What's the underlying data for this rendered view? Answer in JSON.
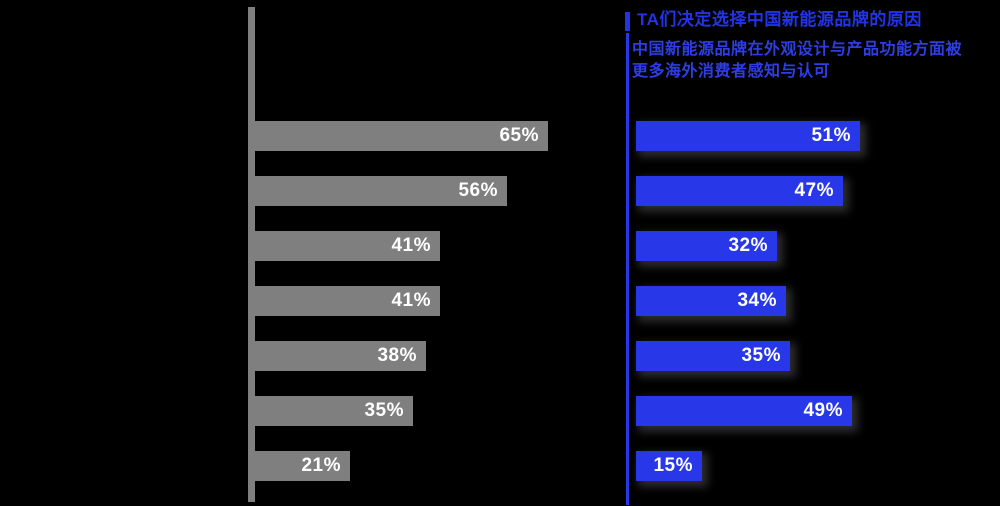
{
  "header": {
    "title": "TA们决定选择中国新能源品牌的原因",
    "subtitle_line1": "中国新能源品牌在外观设计与产品功能方面被",
    "subtitle_line2": "更多海外消费者感知与认可"
  },
  "colors": {
    "background": "#000000",
    "gray_bar": "#7f7f7f",
    "blue_bar": "#2838e8",
    "title_blue": "#2334e6",
    "bar_label_text": "#ffffff"
  },
  "chart_data": [
    {
      "type": "bar",
      "orientation": "horizontal",
      "name": "reasons-gray-series",
      "title": "",
      "unit": "%",
      "categories": [
        "",
        "",
        "",
        "",
        "",
        "",
        ""
      ],
      "values": [
        65,
        56,
        41,
        41,
        38,
        35,
        21
      ],
      "labels": [
        "65%",
        "56%",
        "41%",
        "41%",
        "38%",
        "35%",
        "21%"
      ],
      "bar_color": "#7f7f7f",
      "value_labels_inside": true,
      "axis_line": "left-vertical-gray",
      "grid": false,
      "xlim": [
        0,
        100
      ]
    },
    {
      "type": "bar",
      "orientation": "horizontal",
      "name": "reasons-blue-series",
      "title": "TA们决定选择中国新能源品牌的原因",
      "subtitle": "中国新能源品牌在外观设计与产品功能方面被更多海外消费者感知与认可",
      "unit": "%",
      "categories": [
        "",
        "",
        "",
        "",
        "",
        "",
        ""
      ],
      "values": [
        51,
        47,
        32,
        34,
        35,
        49,
        15
      ],
      "labels": [
        "51%",
        "47%",
        "32%",
        "34%",
        "35%",
        "49%",
        "15%"
      ],
      "bar_color": "#2838e8",
      "value_labels_inside": true,
      "axis_line": "left-vertical-blue",
      "grid": false,
      "xlim": [
        0,
        100
      ]
    }
  ]
}
